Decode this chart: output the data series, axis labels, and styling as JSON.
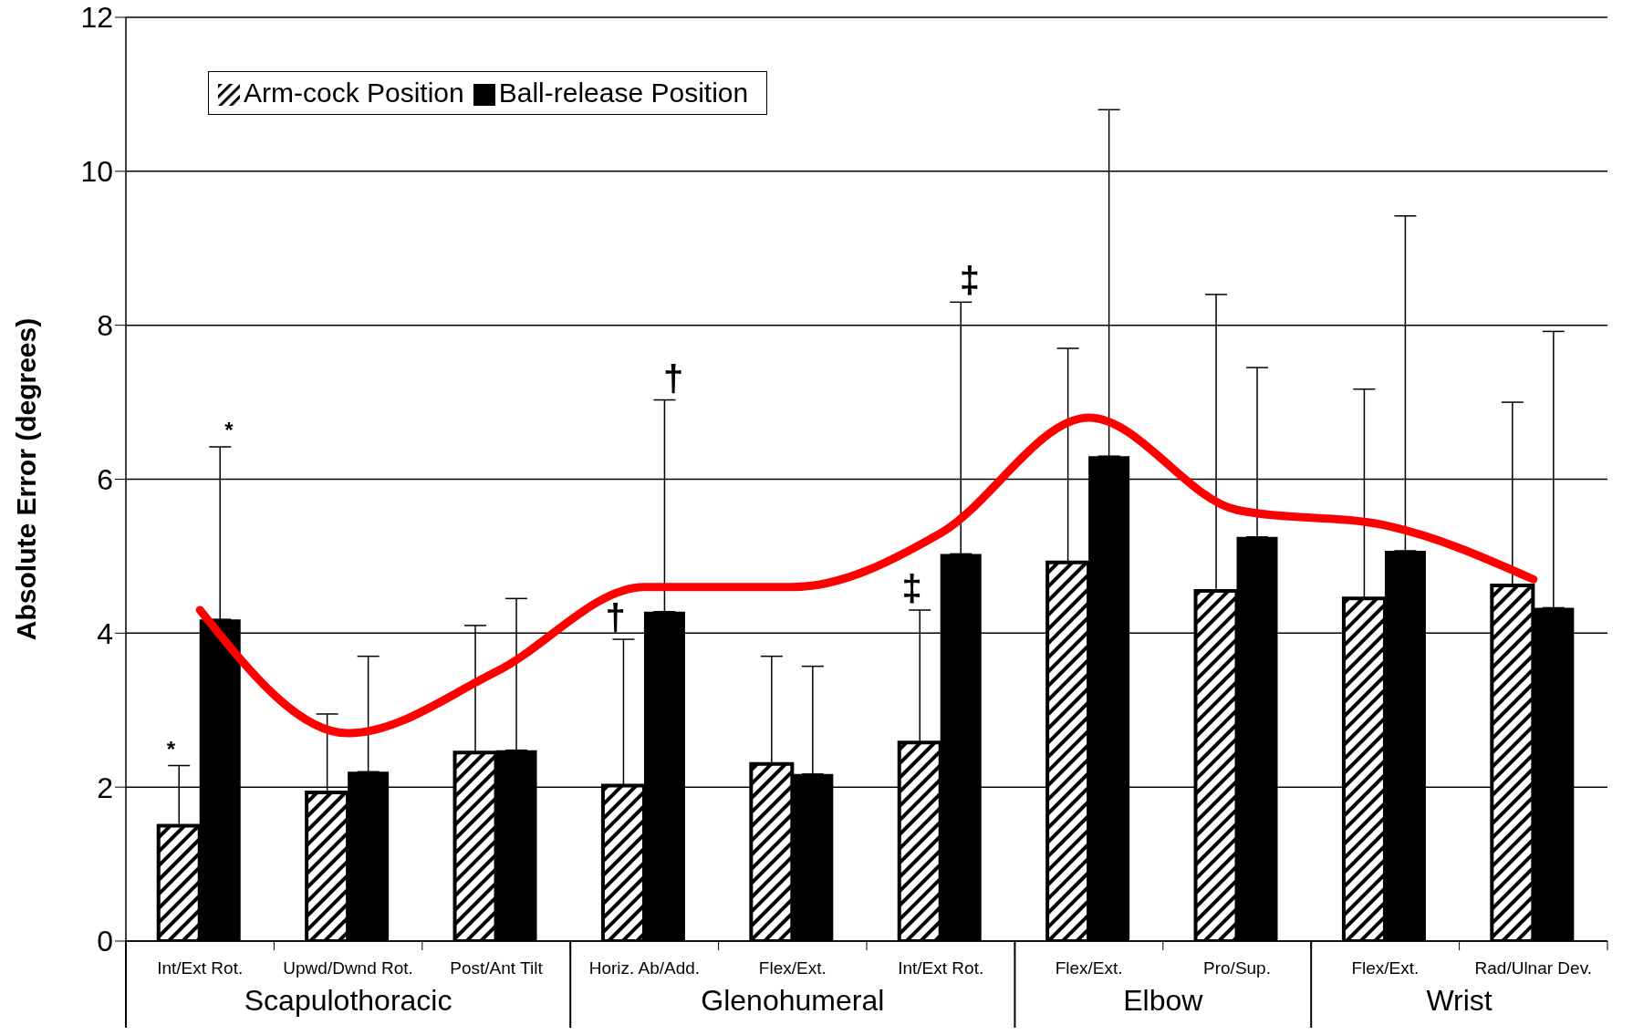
{
  "chart_data": {
    "type": "bar",
    "ylabel": "Absolute Error (degrees)",
    "categories": [
      "Int/Ext Rot.",
      "Upwd/Dwnd Rot.",
      "Post/Ant Tilt",
      "Horiz. Ab/Add.",
      "Flex/Ext.",
      "Int/Ext Rot.",
      "Flex/Ext.",
      "Pro/Sup.",
      "Flex/Ext.",
      "Rad/Ulnar Dev."
    ],
    "series": [
      {
        "name": "Arm-cock Position",
        "color": "#000000",
        "values": [
          1.5,
          1.93,
          2.45,
          2.02,
          2.3,
          2.58,
          4.92,
          4.55,
          4.45,
          4.62
        ],
        "errors": [
          [
            1.5,
            2.28
          ],
          [
            1.93,
            2.95
          ],
          [
            2.45,
            4.1
          ],
          [
            2.02,
            3.92
          ],
          [
            2.3,
            3.7
          ],
          [
            2.58,
            4.3
          ],
          [
            4.92,
            7.7
          ],
          [
            4.55,
            8.4
          ],
          [
            4.45,
            7.17
          ],
          [
            4.62,
            7.0
          ]
        ]
      },
      {
        "name": "Ball-release Position",
        "color": "#000000",
        "values": [
          4.18,
          2.2,
          2.48,
          4.28,
          2.17,
          5.03,
          6.3,
          5.25,
          5.07,
          4.33
        ],
        "errors": [
          [
            4.18,
            6.42
          ],
          [
            2.2,
            3.7
          ],
          [
            2.48,
            4.45
          ],
          [
            4.28,
            7.03
          ],
          [
            2.17,
            3.57
          ],
          [
            5.03,
            8.3
          ],
          [
            6.3,
            10.8
          ],
          [
            5.25,
            7.45
          ],
          [
            5.07,
            9.42
          ],
          [
            4.33,
            7.92
          ]
        ]
      },
      {
        "type": "line",
        "color": "#ff0000",
        "values": [
          4.3,
          2.7,
          3.5,
          4.6,
          4.6,
          5.3,
          6.8,
          5.6,
          5.4,
          4.7
        ]
      }
    ],
    "ylim": [
      0,
      12
    ],
    "yticks": [
      0,
      2,
      4,
      6,
      8,
      10,
      12
    ],
    "grid": "y",
    "legend": "top left",
    "marker": "none",
    "annotations": [
      "Scapulothoracic",
      "Glenohumeral",
      "Elbow",
      "Wrist",
      "*",
      "*",
      "†",
      "†",
      "‡",
      "‡"
    ]
  }
}
